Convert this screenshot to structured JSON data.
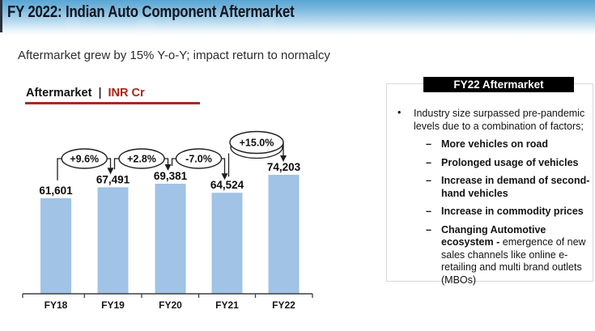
{
  "header": {
    "title": "FY 2022: Indian Auto Component Aftermarket"
  },
  "subtitle": "Aftermarket grew by 15% Y-o-Y; impact return to normalcy",
  "chart_label": {
    "name": "Aftermarket",
    "separator": "|",
    "unit": "INR Cr"
  },
  "chart_data": {
    "type": "bar",
    "title": "Aftermarket | INR Cr",
    "categories": [
      "FY18",
      "FY19",
      "FY20",
      "FY21",
      "FY22"
    ],
    "values": [
      61601,
      67491,
      69381,
      64524,
      74203
    ],
    "value_labels": [
      "61,601",
      "67,491",
      "69,381",
      "64,524",
      "74,203"
    ],
    "growth_labels": [
      "+9.6%",
      "+2.8%",
      "-7.0%",
      "+15.0%"
    ],
    "unit": "INR Cr",
    "xlabel": "",
    "ylabel": "INR Cr",
    "ylim": [
      10000,
      74203
    ],
    "grid": false,
    "legend": false,
    "bar_color": "#A0C3E6"
  },
  "panel": {
    "title": "FY22 Aftermarket",
    "bullet_marker": "•",
    "dash_marker": "–",
    "bullet": "Industry size surpassed pre-pandemic levels due to a combination of factors;",
    "sub_bullets": [
      {
        "bold": "More vehicles on road",
        "rest": ""
      },
      {
        "bold": "Prolonged usage of vehicles",
        "rest": ""
      },
      {
        "bold": "Increase in demand of second-hand vehicles",
        "rest": ""
      },
      {
        "bold": "Increase in commodity prices",
        "rest": ""
      },
      {
        "bold": "Changing Automotive ecosystem -",
        "rest": "emergence of new sales channels like online e-retailing and multi brand outlets (MBOs)"
      }
    ]
  },
  "colors": {
    "accent_red": "#B02318",
    "bar_blue": "#A0C3E6",
    "header_blue": "#58A5D3",
    "panel_title_bg": "#000000",
    "connector": "#1f1f1f"
  }
}
